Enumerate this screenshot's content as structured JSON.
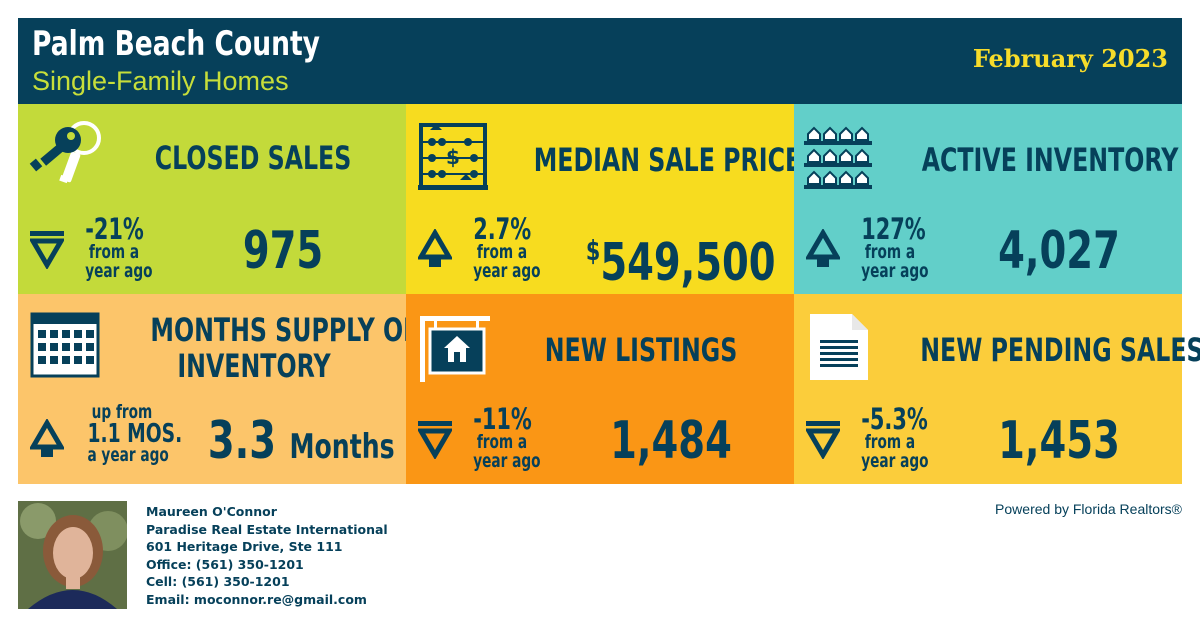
{
  "header": {
    "title": "Palm Beach County",
    "subtitle": "Single-Family Homes",
    "date": "February 2023"
  },
  "colors": {
    "navy": "#06405a",
    "lime": "#c3da3a",
    "yellow": "#f7dc1f",
    "teal": "#62cfc9",
    "peach": "#fcc56a",
    "orange": "#fa9615",
    "gold": "#fbcd3b"
  },
  "tiles": [
    {
      "title": "CLOSED SALES",
      "icon": "keys-icon",
      "direction": "down",
      "change": "-21%",
      "change_sub1": "from a",
      "change_sub2": "year ago",
      "value": "975"
    },
    {
      "title": "MEDIAN SALE PRICE",
      "icon": "abacus-icon",
      "direction": "up",
      "change": "2.7%",
      "change_sub1": "from a",
      "change_sub2": "year ago",
      "value_prefix": "$",
      "value": "549,500"
    },
    {
      "title": "ACTIVE INVENTORY",
      "icon": "houses-shelf-icon",
      "direction": "up",
      "change": "127%",
      "change_sub1": "from a",
      "change_sub2": "year ago",
      "value": "4,027"
    },
    {
      "title_line1": "MONTHS SUPPLY OF",
      "title_line2": "INVENTORY",
      "icon": "calendar-icon",
      "direction": "up",
      "change_sub1": "up from",
      "change": "1.1 MOS.",
      "change_sub2": "a year ago",
      "value": "3.3",
      "value_unit": "Months"
    },
    {
      "title": "NEW LISTINGS",
      "icon": "house-sign-icon",
      "direction": "down",
      "change": "-11%",
      "change_sub1": "from a",
      "change_sub2": "year ago",
      "value": "1,484"
    },
    {
      "title": "NEW PENDING SALES",
      "icon": "document-icon",
      "direction": "down",
      "change": "-5.3%",
      "change_sub1": "from a",
      "change_sub2": "year ago",
      "value": "1,453"
    }
  ],
  "agent": {
    "name": "Maureen O'Connor",
    "company": "Paradise Real Estate International",
    "address": "601 Heritage Drive, Ste 111",
    "office": "Office: (561) 350-1201",
    "cell": "Cell: (561) 350-1201",
    "email": "Email: moconnor.re@gmail.com"
  },
  "powered_by": "Powered by Florida Realtors®"
}
